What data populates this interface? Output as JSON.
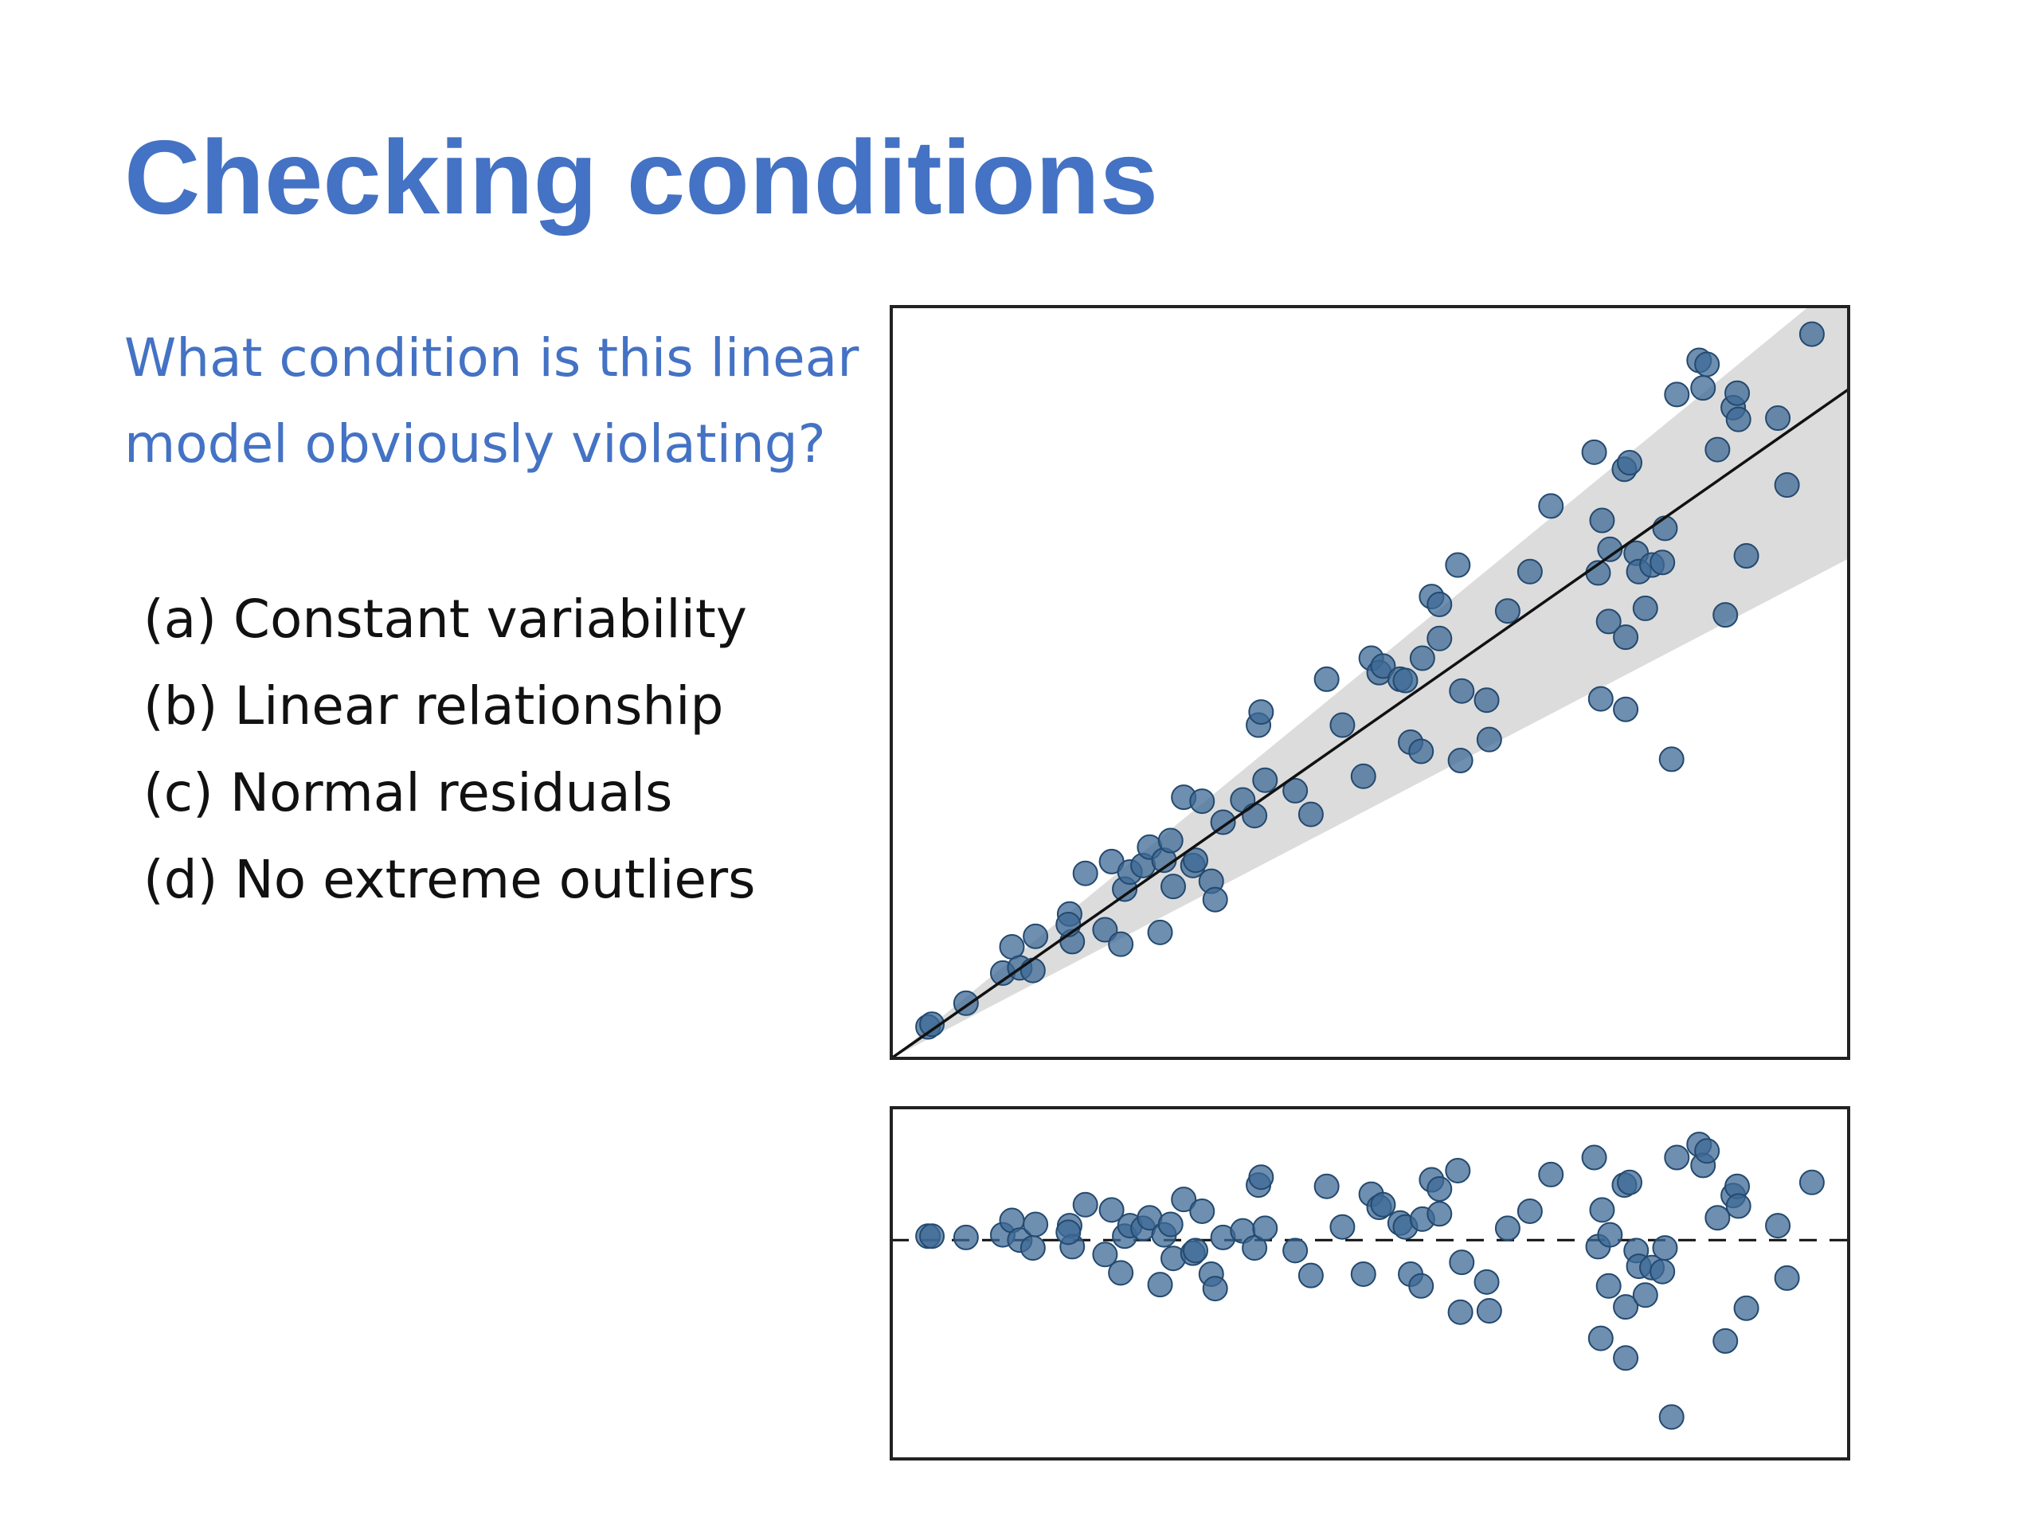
{
  "title": "Checking conditions",
  "question_lines": [
    "What condition is this linear",
    "model obviously violating?"
  ],
  "options": [
    "(a) Constant variability",
    "(b) Linear relationship",
    "(c) Normal residuals",
    "(d) No extreme outliers"
  ],
  "chart_data": [
    {
      "type": "scatter",
      "color": "#3d6a96",
      "xlim": [
        0,
        730
      ],
      "ylim": [
        0,
        573
      ],
      "x": [
        28,
        31,
        57,
        85,
        92,
        98,
        108,
        110,
        136,
        138,
        135,
        148,
        163,
        168,
        175,
        178,
        182,
        192,
        197,
        205,
        208,
        213,
        215,
        223,
        230,
        232,
        237,
        244,
        247,
        253,
        268,
        277,
        280,
        282,
        285,
        308,
        320,
        332,
        344,
        360,
        366,
        372,
        375,
        388,
        396,
        392,
        404,
        405,
        412,
        418,
        418,
        432,
        435,
        434,
        454,
        456,
        470,
        487,
        503,
        536,
        542,
        539,
        541,
        547,
        548,
        559,
        560,
        560,
        563,
        568,
        570,
        575,
        580,
        588,
        590,
        595,
        599,
        616,
        619,
        622,
        630,
        636,
        642,
        645,
        646,
        652,
        676,
        683,
        702
      ],
      "values": [
        24,
        26,
        42,
        65,
        85,
        69,
        67,
        93,
        110,
        89,
        102,
        141,
        98,
        150,
        87,
        129,
        142,
        147,
        161,
        96,
        151,
        166,
        131,
        199,
        147,
        151,
        196,
        135,
        121,
        180,
        197,
        185,
        254,
        264,
        212,
        204,
        186,
        289,
        254,
        215,
        305,
        294,
        299,
        289,
        241,
        288,
        234,
        305,
        352,
        346,
        320,
        376,
        280,
        227,
        273,
        243,
        341,
        371,
        421,
        462,
        410,
        370,
        274,
        333,
        388,
        449,
        321,
        266,
        454,
        385,
        371,
        343,
        376,
        378,
        404,
        228,
        506,
        532,
        511,
        529,
        464,
        338,
        496,
        507,
        487,
        383,
        488,
        437,
        552
      ],
      "fit_line": {
        "x": [
          0,
          730
        ],
        "y": [
          0,
          510
        ]
      },
      "band": {
        "x": [
          0,
          730
        ],
        "lower": [
          0,
          381
        ],
        "upper": [
          0,
          598
        ]
      }
    },
    {
      "type": "scatter",
      "color": "#3d6a96",
      "xlim": [
        0,
        730
      ],
      "ylim": [
        -167,
        101
      ],
      "x": [
        28,
        31,
        57,
        85,
        92,
        98,
        108,
        110,
        136,
        138,
        135,
        148,
        163,
        168,
        175,
        178,
        182,
        192,
        197,
        205,
        208,
        213,
        215,
        223,
        230,
        232,
        237,
        244,
        247,
        253,
        268,
        277,
        280,
        282,
        285,
        308,
        320,
        332,
        344,
        360,
        366,
        372,
        375,
        388,
        396,
        392,
        404,
        405,
        412,
        418,
        418,
        432,
        435,
        434,
        454,
        456,
        470,
        487,
        503,
        536,
        542,
        539,
        541,
        547,
        548,
        559,
        560,
        560,
        563,
        568,
        570,
        575,
        580,
        588,
        590,
        595,
        599,
        616,
        619,
        622,
        630,
        636,
        642,
        645,
        646,
        652,
        676,
        683,
        702
      ],
      "values": [
        3,
        3,
        2,
        4,
        15,
        0,
        -6,
        12,
        11,
        -5,
        6,
        27,
        -11,
        23,
        -25,
        3,
        11,
        9,
        17,
        -34,
        4,
        12,
        -14,
        31,
        -10,
        -8,
        22,
        -26,
        -37,
        2,
        7,
        -6,
        42,
        48,
        9,
        -8,
        -27,
        41,
        10,
        -26,
        35,
        25,
        27,
        13,
        -26,
        10,
        -35,
        16,
        46,
        39,
        20,
        53,
        -17,
        -55,
        -32,
        -54,
        9,
        22,
        50,
        63,
        23,
        -5,
        -75,
        -35,
        4,
        42,
        -51,
        -90,
        44,
        -8,
        -20,
        -42,
        -21,
        -24,
        -6,
        -135,
        63,
        73,
        57,
        68,
        17,
        -77,
        34,
        41,
        26,
        -52,
        11,
        -29,
        44
      ],
      "reference_line": 0
    }
  ]
}
